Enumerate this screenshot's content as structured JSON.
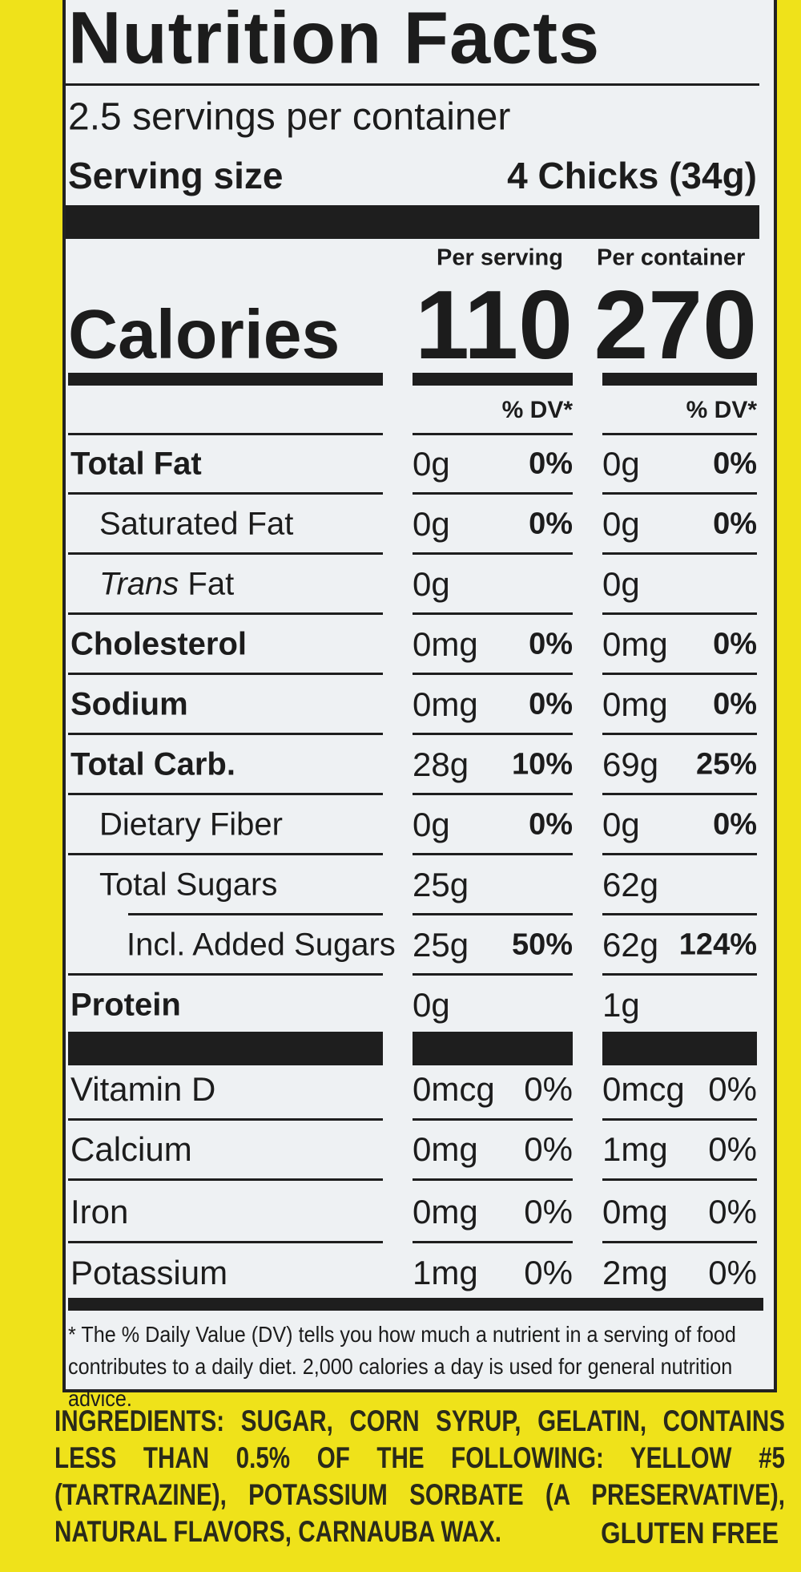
{
  "header": {
    "title": "Nutrition Facts",
    "servings": "2.5 servings per container",
    "serving_size_label": "Serving size",
    "serving_size": "4 Chicks (34g)"
  },
  "columns": [
    "Per serving",
    "Per container"
  ],
  "calories": {
    "label": "Calories",
    "values": [
      "110",
      "270"
    ]
  },
  "dv_headers": [
    "% DV*",
    "% DV*"
  ],
  "nutrients": [
    {
      "name": "Total Fat",
      "bold": true,
      "indent": 0,
      "cells": [
        "0g",
        "0%",
        "0g",
        "0%"
      ]
    },
    {
      "name": "Saturated Fat",
      "bold": false,
      "indent": 1,
      "cells": [
        "0g",
        "0%",
        "0g",
        "0%"
      ]
    },
    {
      "name_prefix": "Trans",
      "name": "Fat",
      "bold": false,
      "indent": 1,
      "cells": [
        "0g",
        null,
        "0g",
        null
      ]
    },
    {
      "name": "Cholesterol",
      "bold": true,
      "indent": 0,
      "cells": [
        "0mg",
        "0%",
        "0mg",
        "0%"
      ]
    },
    {
      "name": "Sodium",
      "bold": true,
      "indent": 0,
      "cells": [
        "0mg",
        "0%",
        "0mg",
        "0%"
      ]
    },
    {
      "name": "Total Carb.",
      "bold": true,
      "indent": 0,
      "cells": [
        "28g",
        "10%",
        "69g",
        "25%"
      ]
    },
    {
      "name": "Dietary Fiber",
      "bold": false,
      "indent": 1,
      "cells": [
        "0g",
        "0%",
        "0g",
        "0%"
      ]
    },
    {
      "name": "Total Sugars",
      "bold": false,
      "indent": 1,
      "cells": [
        "25g",
        null,
        "62g",
        null
      ]
    },
    {
      "name": "Incl. Added Sugars",
      "bold": false,
      "indent": 2,
      "cells": [
        "25g",
        "50%",
        "62g",
        "124%"
      ]
    },
    {
      "name": "Protein",
      "bold": true,
      "indent": 0,
      "cells": [
        "0g",
        null,
        "1g",
        null
      ]
    }
  ],
  "vitamins": [
    {
      "name": "Vitamin D",
      "cells": [
        "0mcg",
        "0%",
        "0mcg",
        "0%"
      ]
    },
    {
      "name": "Calcium",
      "cells": [
        "0mg",
        "0%",
        "1mg",
        "0%"
      ]
    },
    {
      "name": "Iron",
      "cells": [
        "0mg",
        "0%",
        "0mg",
        "0%"
      ]
    },
    {
      "name": "Potassium",
      "cells": [
        "1mg",
        "0%",
        "2mg",
        "0%"
      ]
    }
  ],
  "footnote": "* The % Daily Value (DV) tells you how much a nutrient in a serving of food contributes to a daily diet. 2,000 calories a day is used for general nutrition advice.",
  "ingredients": {
    "label": "INGREDIENTS:",
    "text": "SUGAR, CORN SYRUP, GELATIN, CONTAINS LESS THAN 0.5% OF THE FOLLOWING: YELLOW #5 (TARTRAZINE), POTASSIUM SORBATE (A PRESERVATIVE), NATURAL FLAVORS, CARNAUBA WAX.",
    "note": "GLUTEN FREE"
  }
}
